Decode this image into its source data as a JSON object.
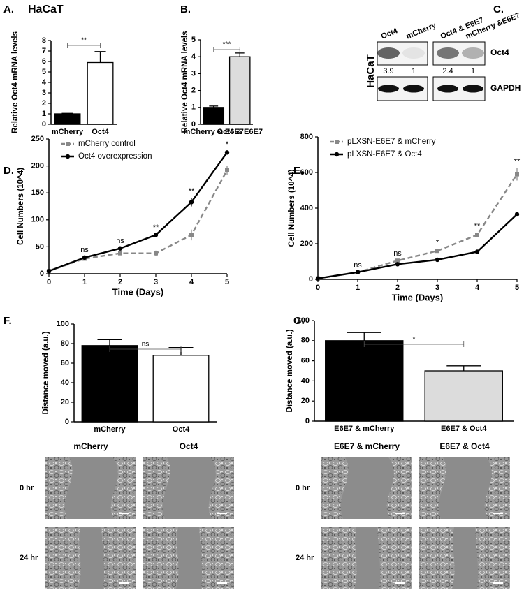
{
  "chart_data": [
    {
      "type": "bar",
      "label": "A.",
      "title": "HaCaT",
      "ylabel": "Relative Oct4 mRNA levels",
      "categories": [
        "mCherry",
        "Oct4"
      ],
      "values": [
        1.0,
        5.9
      ],
      "errors": [
        0.05,
        1.05
      ],
      "colors": [
        "#000000",
        "#ffffff"
      ],
      "ylim": [
        0,
        8
      ],
      "yticks": [
        0,
        1,
        2,
        3,
        4,
        5,
        6,
        7,
        8
      ],
      "significance": "**"
    },
    {
      "type": "bar",
      "label": "B.",
      "ylabel": "Relative Oct4 mRNA levels",
      "categories": [
        "mCherry & E6E7",
        "Oct4 & E6E7"
      ],
      "values": [
        1.0,
        4.0
      ],
      "errors": [
        0.08,
        0.22
      ],
      "colors": [
        "#000000",
        "#dcdcdc"
      ],
      "ylim": [
        0,
        5
      ],
      "yticks": [
        0,
        1,
        2,
        3,
        4,
        5
      ],
      "significance": "***"
    },
    {
      "type": "line",
      "label": "D.",
      "xlabel": "Time (Days)",
      "ylabel": "Cell Numbers (10^4)",
      "x": [
        0,
        1,
        2,
        3,
        4,
        5
      ],
      "xlim": [
        0,
        5
      ],
      "xticks": [
        0,
        1,
        2,
        3,
        4,
        5
      ],
      "ylim": [
        0,
        250
      ],
      "yticks": [
        0,
        50,
        100,
        150,
        200,
        250
      ],
      "legend": "upper left",
      "series": [
        {
          "name": "mCherry control",
          "color": "#888888",
          "dashed": true,
          "marker": "square",
          "values": [
            5,
            28,
            38,
            38,
            72,
            192
          ],
          "errors": [
            0,
            2,
            3,
            5,
            10,
            8
          ]
        },
        {
          "name": "Oct4 overexpression",
          "color": "#000000",
          "dashed": false,
          "marker": "circle",
          "values": [
            5,
            30,
            47,
            72,
            133,
            225
          ],
          "errors": [
            0,
            2,
            2,
            2,
            8,
            3
          ]
        }
      ],
      "annotations": [
        null,
        "ns",
        "ns",
        "**",
        "**",
        "*"
      ]
    },
    {
      "type": "line",
      "label": "E.",
      "xlabel": "Time (Days)",
      "ylabel": "Cell Numbers (10^4)",
      "x": [
        0,
        1,
        2,
        3,
        4,
        5
      ],
      "xlim": [
        0,
        5
      ],
      "xticks": [
        0,
        1,
        2,
        3,
        4,
        5
      ],
      "ylim": [
        0,
        800
      ],
      "yticks": [
        0,
        200,
        400,
        600,
        800
      ],
      "legend": "upper left",
      "series": [
        {
          "name": "pLXSN-E6E7 & mCherry",
          "color": "#888888",
          "dashed": true,
          "marker": "square",
          "values": [
            5,
            40,
            105,
            160,
            250,
            590
          ],
          "errors": [
            0,
            3,
            5,
            10,
            12,
            35
          ]
        },
        {
          "name": "pLXSN-E6E7 &  Oct4",
          "color": "#000000",
          "dashed": false,
          "marker": "circle",
          "values": [
            5,
            40,
            85,
            110,
            155,
            365
          ],
          "errors": [
            0,
            3,
            3,
            3,
            3,
            3
          ]
        }
      ],
      "annotations": [
        null,
        "ns",
        "ns",
        "*",
        "**",
        "**"
      ]
    },
    {
      "type": "bar",
      "label": "F.",
      "ylabel": "Distance moved (a.u.)",
      "categories": [
        "mCherry",
        "Oct4"
      ],
      "values": [
        78,
        68
      ],
      "errors": [
        6,
        8
      ],
      "colors": [
        "#000000",
        "#ffffff"
      ],
      "ylim": [
        0,
        100
      ],
      "yticks": [
        0,
        20,
        40,
        60,
        80,
        100
      ],
      "significance": "ns"
    },
    {
      "type": "bar",
      "label": "G.",
      "ylabel": "Distance moved (a.u.)",
      "categories": [
        "E6E7 & mCherry",
        "E6E7 & Oct4"
      ],
      "values": [
        80,
        50
      ],
      "errors": [
        8,
        5
      ],
      "colors": [
        "#000000",
        "#dcdcdc"
      ],
      "ylim": [
        0,
        100
      ],
      "yticks": [
        0,
        20,
        40,
        60,
        80,
        100
      ],
      "significance": "*"
    }
  ],
  "blot": {
    "label": "C.",
    "cell_line": "HaCaT",
    "lanes": [
      "Oct4",
      "mCherry",
      "Oct4 & E6E7",
      "mCherry &E6E7"
    ],
    "quantification": [
      3.9,
      1,
      2.4,
      1
    ],
    "proteins": [
      "Oct4",
      "GAPDH"
    ]
  },
  "scratch": [
    {
      "columns": [
        "mCherry",
        "Oct4"
      ],
      "rows": [
        "0 hr",
        "24 hr"
      ]
    },
    {
      "columns": [
        "E6E7 & mCherry",
        "E6E7 & Oct4"
      ],
      "rows": [
        "0 hr",
        "24 hr"
      ]
    }
  ]
}
